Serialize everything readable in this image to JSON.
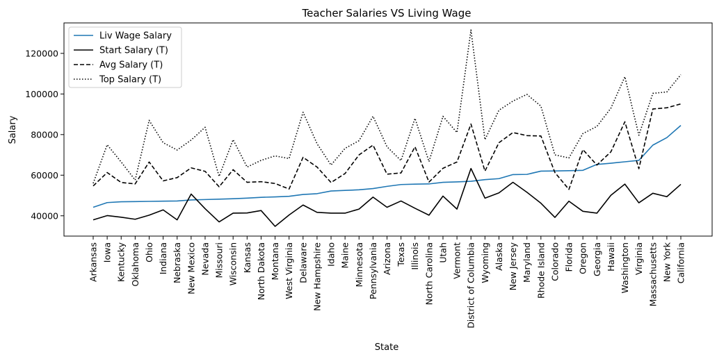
{
  "chart_data": {
    "type": "line",
    "title": "Teacher Salaries VS Living Wage",
    "xlabel": "State",
    "ylabel": "Salary",
    "ylim": [
      30000,
      135000
    ],
    "yticks": [
      40000,
      60000,
      80000,
      100000,
      120000
    ],
    "grid": false,
    "legend_position": "top-left",
    "categories": [
      "Arkansas",
      "Iowa",
      "Kentucky",
      "Oklahoma",
      "Ohio",
      "Indiana",
      "Nebraska",
      "New Mexico",
      "Nevada",
      "Missouri",
      "Wisconsin",
      "Kansas",
      "North Dakota",
      "Montana",
      "West Virginia",
      "Delaware",
      "New Hampshire",
      "Idaho",
      "Maine",
      "Minnesota",
      "Pennsylvania",
      "Arizona",
      "Texas",
      "Illinois",
      "North Carolina",
      "Utah",
      "Vermont",
      "District of Columbia",
      "Wyoming",
      "Alaska",
      "New Jersey",
      "Maryland",
      "Rhode Island",
      "Colorado",
      "Florida",
      "Oregon",
      "Georgia",
      "Hawaii",
      "Washington",
      "Virginia",
      "Massachusetts",
      "New York",
      "California"
    ],
    "series": [
      {
        "name": "Liv Wage Salary",
        "color": "#1f77b4",
        "style": "solid",
        "values": [
          44200,
          46500,
          46900,
          47000,
          47100,
          47200,
          47300,
          47800,
          48000,
          48200,
          48400,
          48700,
          49100,
          49300,
          49600,
          50500,
          50900,
          52200,
          52500,
          52800,
          53400,
          54500,
          55400,
          55600,
          55700,
          56500,
          56700,
          57000,
          57800,
          58300,
          60300,
          60400,
          62000,
          62100,
          62200,
          62400,
          65300,
          65900,
          66600,
          67300,
          74800,
          78500,
          84500
        ]
      },
      {
        "name": "Start Salary (T)",
        "color": "#000000",
        "style": "solid",
        "values": [
          38000,
          40100,
          39300,
          38300,
          40300,
          42900,
          38000,
          50700,
          43500,
          37000,
          41300,
          41400,
          42600,
          34800,
          40400,
          45300,
          41700,
          41300,
          41300,
          43300,
          49200,
          44200,
          47300,
          43700,
          40300,
          49700,
          43300,
          63300,
          48700,
          51300,
          56500,
          51600,
          46200,
          39200,
          47200,
          42200,
          41300,
          50100,
          55600,
          46400,
          51100,
          49400,
          55500
        ]
      },
      {
        "name": "Avg Salary (T)",
        "color": "#000000",
        "style": "dashed",
        "values": [
          54700,
          61300,
          56400,
          55700,
          66500,
          57200,
          58800,
          63600,
          61900,
          54300,
          62700,
          56500,
          56800,
          55900,
          53200,
          68800,
          64000,
          56400,
          60800,
          70000,
          74800,
          60500,
          61100,
          74000,
          56600,
          63400,
          66500,
          85200,
          62000,
          76000,
          81000,
          79500,
          79300,
          61300,
          53000,
          72600,
          65000,
          71500,
          86300,
          63200,
          92600,
          93200,
          95100
        ]
      },
      {
        "name": "Top Salary (T)",
        "color": "#000000",
        "style": "dotted",
        "values": [
          56000,
          75000,
          66500,
          57600,
          87000,
          76000,
          72400,
          77300,
          83600,
          59400,
          77500,
          64000,
          67300,
          69500,
          68200,
          91000,
          75500,
          65000,
          73200,
          77000,
          89000,
          74000,
          67200,
          88000,
          66700,
          89000,
          81000,
          131500,
          77500,
          92000,
          96500,
          99800,
          94000,
          70000,
          68500,
          80500,
          84000,
          93000,
          108500,
          79700,
          100300,
          101000,
          109500
        ]
      }
    ]
  }
}
